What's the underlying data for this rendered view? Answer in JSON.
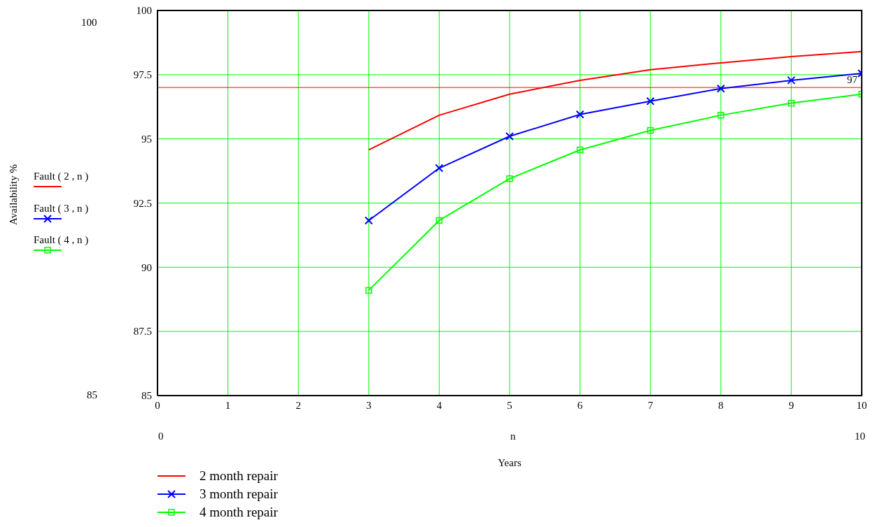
{
  "chart_data": {
    "type": "line",
    "xlabel": "Years",
    "x": [
      3,
      4,
      5,
      6,
      7,
      8,
      9,
      10
    ],
    "series": [
      {
        "name": "2 month repair",
        "color": "#ff0000",
        "marker": "none",
        "values": [
          94.57,
          95.92,
          96.74,
          97.28,
          97.69,
          97.96,
          98.2,
          98.4
        ]
      },
      {
        "name": "3 month repair",
        "color": "#0000ff",
        "marker": "cross",
        "values": [
          91.82,
          93.86,
          95.1,
          95.95,
          96.47,
          96.96,
          97.28,
          97.55
        ]
      },
      {
        "name": "4 month repair",
        "color": "#00ff00",
        "marker": "square",
        "values": [
          89.1,
          91.82,
          93.45,
          94.57,
          95.33,
          95.92,
          96.39,
          96.74
        ]
      }
    ],
    "xlim": [
      0,
      10
    ],
    "xticks": [
      0,
      1,
      2,
      3,
      4,
      5,
      6,
      7,
      8,
      9,
      10
    ],
    "ylim": [
      85,
      100
    ],
    "yticks": [
      85,
      87.5,
      90,
      92.5,
      95,
      97.5,
      100
    ],
    "ref_lines": [
      {
        "axis": "y",
        "value": 97,
        "label": "97",
        "color": "#ff0000"
      }
    ],
    "grid": true,
    "legend": "bottom left",
    "line_style": "solid",
    "annotations": [
      "Fault ( 2 , n )",
      "Fault ( 3 , n )",
      "Fault ( 4 , n )",
      "100",
      "85",
      "0",
      "n",
      "10",
      "Availability %"
    ]
  }
}
